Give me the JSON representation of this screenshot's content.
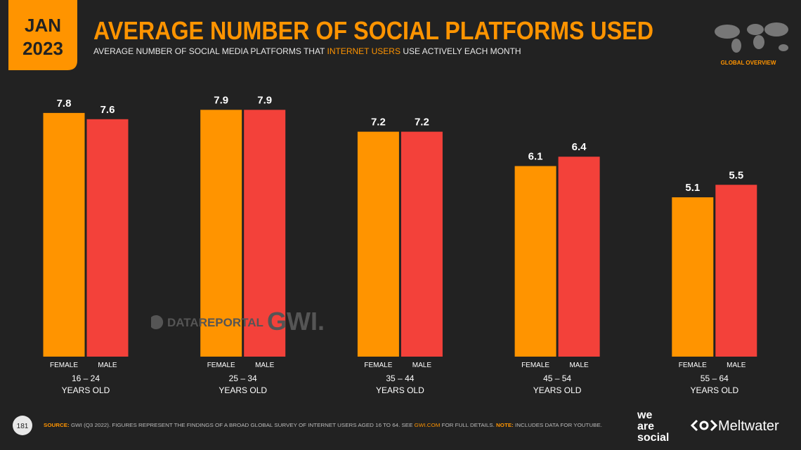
{
  "header": {
    "date_month": "JAN",
    "date_year": "2023",
    "section": "GLOBAL OVERVIEW"
  },
  "chart_data": {
    "type": "bar",
    "title": "AVERAGE NUMBER OF SOCIAL PLATFORMS USED",
    "subtitle": [
      "AVERAGE NUMBER OF SOCIAL MEDIA PLATFORMS THAT ",
      "INTERNET USERS",
      " USE ACTIVELY EACH MONTH"
    ],
    "categories": [
      "16 – 24",
      "25 – 34",
      "35 – 44",
      "45 – 54",
      "55 – 64"
    ],
    "category_suffix": "YEARS OLD",
    "series": [
      {
        "name": "FEMALE",
        "color": "#ff9400",
        "values": [
          7.8,
          7.9,
          7.2,
          6.1,
          5.1
        ]
      },
      {
        "name": "MALE",
        "color": "#f3413a",
        "values": [
          7.6,
          7.9,
          7.2,
          6.4,
          5.5
        ]
      }
    ]
  },
  "watermarks": {
    "datareportal": "DATAREPORTAL",
    "gwi": "GWI."
  },
  "footer": {
    "page": "181",
    "source_label": "SOURCE:",
    "source_text": " GWI (Q3 2022). FIGURES REPRESENT THE FINDINGS OF A BROAD GLOBAL SURVEY OF INTERNET USERS AGED 16 TO 64. SEE ",
    "source_link": "GWI.COM",
    "source_end": " FOR FULL DETAILS. ",
    "note_label": "NOTE:",
    "note_text": " INCLUDES DATA FOR YOUTUBE.",
    "logo_1": [
      "we",
      "are",
      "social"
    ],
    "logo_2": "Meltwater"
  }
}
